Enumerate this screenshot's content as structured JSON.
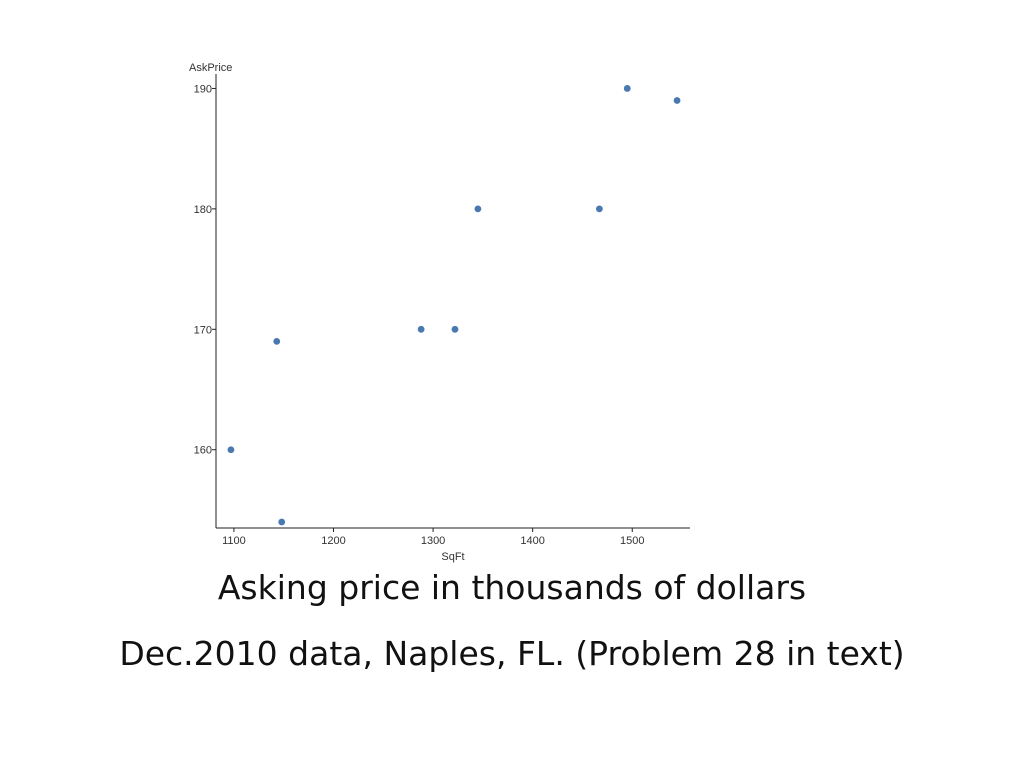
{
  "chart_data": {
    "type": "scatter",
    "xlabel": "SqFt",
    "ylabel": "AskPrice",
    "xlim": [
      1082,
      1558
    ],
    "ylim": [
      153.5,
      191.2
    ],
    "x_ticks": [
      1100,
      1200,
      1300,
      1400,
      1500
    ],
    "y_ticks": [
      160,
      170,
      180,
      190
    ],
    "grid": false,
    "marker_color": "#4a78b0",
    "points": [
      {
        "x": 1097,
        "y": 160
      },
      {
        "x": 1143,
        "y": 169
      },
      {
        "x": 1148,
        "y": 154
      },
      {
        "x": 1288,
        "y": 170
      },
      {
        "x": 1322,
        "y": 170
      },
      {
        "x": 1345,
        "y": 180
      },
      {
        "x": 1467,
        "y": 180
      },
      {
        "x": 1495,
        "y": 190
      },
      {
        "x": 1545,
        "y": 189
      }
    ]
  },
  "captions": {
    "line1": "Asking price in thousands of dollars",
    "line2": "Dec.2010 data, Naples, FL. (Problem 28 in text)"
  }
}
